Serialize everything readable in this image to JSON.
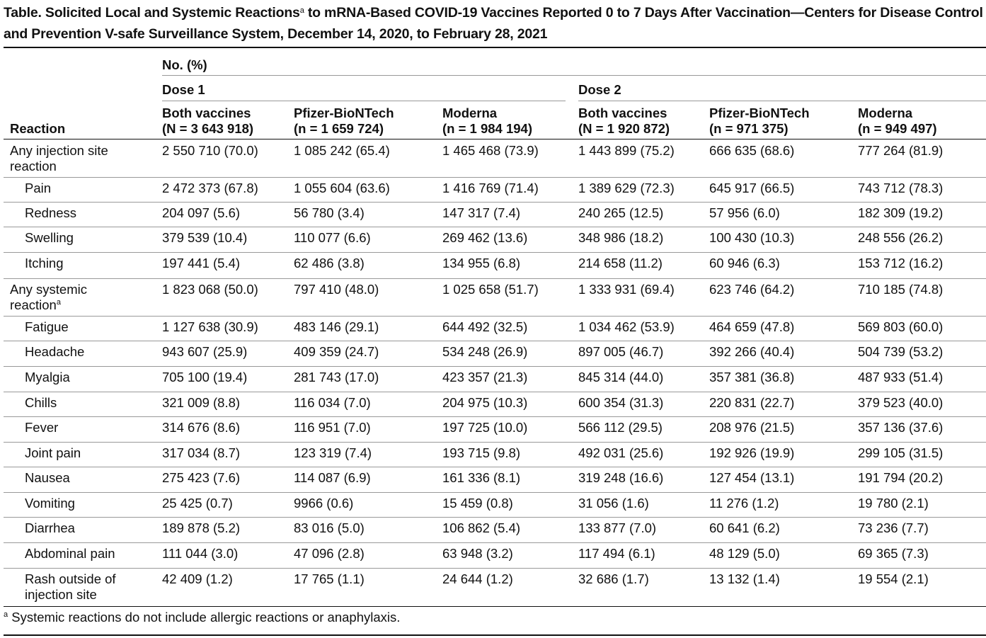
{
  "title": {
    "text": "Table. Solicited Local and Systemic Reactions",
    "superscript": "a",
    "text_after": " to mRNA-Based COVID-19 Vaccines Reported 0 to 7 Days After Vaccination—Centers for Disease Control and Prevention V-safe Surveillance System, December 14, 2020, to February 28, 2021"
  },
  "header": {
    "no_pct": "No. (%)",
    "reaction": "Reaction",
    "dose1": "Dose 1",
    "dose2": "Dose 2",
    "columns": [
      {
        "name": "Both vaccines",
        "n": "(N = 3 643 918)"
      },
      {
        "name": "Pfizer-BioNTech",
        "n": "(n = 1 659 724)"
      },
      {
        "name": "Moderna",
        "n": "(n = 1 984 194)"
      },
      {
        "name": "Both vaccines",
        "n": "(N = 1 920 872)"
      },
      {
        "name": "Pfizer-BioNTech",
        "n": "(n = 971 375)"
      },
      {
        "name": "Moderna",
        "n": "(n = 949 497)"
      }
    ]
  },
  "rows": [
    {
      "label": "Any injection site",
      "label2": "reaction",
      "sup": "",
      "indent": false,
      "values": [
        "2 550 710 (70.0)",
        "1 085 242 (65.4)",
        "1 465 468 (73.9)",
        "1 443 899 (75.2)",
        "666 635 (68.6)",
        "777 264 (81.9)"
      ]
    },
    {
      "label": "Pain",
      "label2": "",
      "sup": "",
      "indent": true,
      "values": [
        "2 472 373 (67.8)",
        "1 055 604 (63.6)",
        "1 416 769 (71.4)",
        "1 389 629 (72.3)",
        "645 917 (66.5)",
        "743 712 (78.3)"
      ]
    },
    {
      "label": "Redness",
      "label2": "",
      "sup": "",
      "indent": true,
      "values": [
        "204 097 (5.6)",
        "56 780 (3.4)",
        "147 317 (7.4)",
        "240 265 (12.5)",
        "57 956 (6.0)",
        "182 309 (19.2)"
      ]
    },
    {
      "label": "Swelling",
      "label2": "",
      "sup": "",
      "indent": true,
      "values": [
        "379 539 (10.4)",
        "110 077 (6.6)",
        "269 462 (13.6)",
        "348 986 (18.2)",
        "100 430 (10.3)",
        "248 556 (26.2)"
      ]
    },
    {
      "label": "Itching",
      "label2": "",
      "sup": "",
      "indent": true,
      "values": [
        "197 441 (5.4)",
        "62 486 (3.8)",
        "134 955 (6.8)",
        "214 658 (11.2)",
        "60 946 (6.3)",
        "153 712 (16.2)"
      ]
    },
    {
      "label": "Any systemic",
      "label2": "reaction",
      "sup": "a",
      "indent": false,
      "values": [
        "1 823 068 (50.0)",
        "797 410 (48.0)",
        "1 025 658 (51.7)",
        "1 333 931 (69.4)",
        "623 746 (64.2)",
        "710 185 (74.8)"
      ]
    },
    {
      "label": "Fatigue",
      "label2": "",
      "sup": "",
      "indent": true,
      "values": [
        "1 127 638 (30.9)",
        "483 146 (29.1)",
        "644 492 (32.5)",
        "1 034 462 (53.9)",
        "464 659 (47.8)",
        "569 803 (60.0)"
      ]
    },
    {
      "label": "Headache",
      "label2": "",
      "sup": "",
      "indent": true,
      "values": [
        "943 607 (25.9)",
        "409 359 (24.7)",
        "534 248 (26.9)",
        "897 005 (46.7)",
        "392 266 (40.4)",
        "504 739 (53.2)"
      ]
    },
    {
      "label": "Myalgia",
      "label2": "",
      "sup": "",
      "indent": true,
      "values": [
        "705 100 (19.4)",
        "281 743 (17.0)",
        "423 357 (21.3)",
        "845 314 (44.0)",
        "357 381 (36.8)",
        "487 933 (51.4)"
      ]
    },
    {
      "label": "Chills",
      "label2": "",
      "sup": "",
      "indent": true,
      "values": [
        "321 009 (8.8)",
        "116 034 (7.0)",
        "204 975 (10.3)",
        "600 354 (31.3)",
        "220 831 (22.7)",
        "379 523 (40.0)"
      ]
    },
    {
      "label": "Fever",
      "label2": "",
      "sup": "",
      "indent": true,
      "values": [
        "314 676 (8.6)",
        "116 951 (7.0)",
        "197 725 (10.0)",
        "566 112 (29.5)",
        "208 976 (21.5)",
        "357 136 (37.6)"
      ]
    },
    {
      "label": "Joint pain",
      "label2": "",
      "sup": "",
      "indent": true,
      "values": [
        "317 034 (8.7)",
        "123 319 (7.4)",
        "193 715 (9.8)",
        "492 031 (25.6)",
        "192 926 (19.9)",
        "299 105 (31.5)"
      ]
    },
    {
      "label": "Nausea",
      "label2": "",
      "sup": "",
      "indent": true,
      "values": [
        "275 423 (7.6)",
        "114 087 (6.9)",
        "161 336 (8.1)",
        "319 248 (16.6)",
        "127 454 (13.1)",
        "191 794 (20.2)"
      ]
    },
    {
      "label": "Vomiting",
      "label2": "",
      "sup": "",
      "indent": true,
      "values": [
        "25 425 (0.7)",
        "9966 (0.6)",
        "15 459 (0.8)",
        "31 056 (1.6)",
        "11 276 (1.2)",
        "19 780 (2.1)"
      ]
    },
    {
      "label": "Diarrhea",
      "label2": "",
      "sup": "",
      "indent": true,
      "values": [
        "189 878 (5.2)",
        "83 016 (5.0)",
        "106 862 (5.4)",
        "133 877 (7.0)",
        "60 641 (6.2)",
        "73 236 (7.7)"
      ]
    },
    {
      "label": "Abdominal pain",
      "label2": "",
      "sup": "",
      "indent": true,
      "values": [
        "111 044 (3.0)",
        "47 096 (2.8)",
        "63 948 (3.2)",
        "117 494 (6.1)",
        "48 129 (5.0)",
        "69 365 (7.3)"
      ]
    },
    {
      "label": "Rash outside of",
      "label2": "injection site",
      "sup": "",
      "indent": true,
      "values": [
        "42 409 (1.2)",
        "17 765 (1.1)",
        "24 644 (1.2)",
        "32 686 (1.7)",
        "13 132 (1.4)",
        "19 554 (2.1)"
      ]
    }
  ],
  "footnote": {
    "marker": "a",
    "text": " Systemic reactions do not include allergic reactions or anaphylaxis."
  }
}
